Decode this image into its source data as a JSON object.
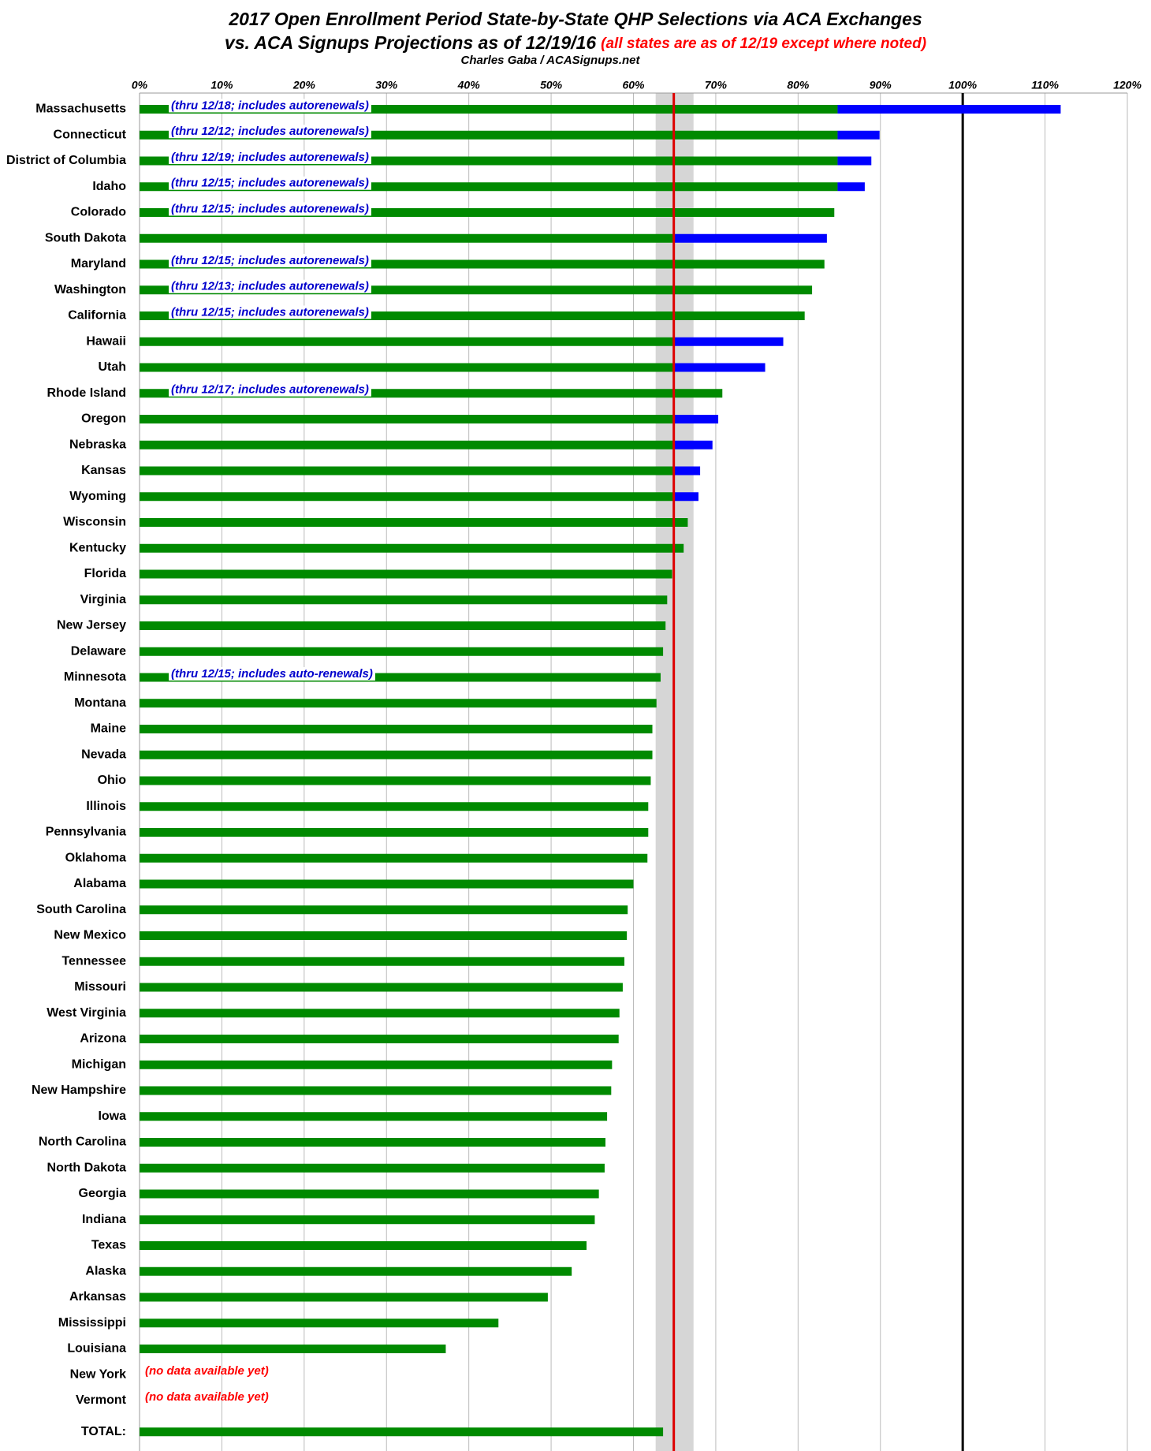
{
  "chart_data": {
    "type": "bar",
    "title": "2017 Open Enrollment Period State-by-State QHP Selections via ACA Exchanges",
    "title_line2": "vs. ACA Signups Projections as of 12/19/16",
    "title_note": "(all states are as of 12/19 except where noted)",
    "subtitle": "Charles Gaba / ACASignups.net",
    "orientation": "horizontal",
    "categories": [
      "Massachusetts",
      "Connecticut",
      "District of Columbia",
      "Idaho",
      "Colorado",
      "South Dakota",
      "Maryland",
      "Washington",
      "California",
      "Hawaii",
      "Utah",
      "Rhode Island",
      "Oregon",
      "Nebraska",
      "Kansas",
      "Wyoming",
      "Wisconsin",
      "Kentucky",
      "Florida",
      "Virginia",
      "New Jersey",
      "Delaware",
      "Minnesota",
      "Montana",
      "Maine",
      "Nevada",
      "Ohio",
      "Illinois",
      "Pennsylvania",
      "Oklahoma",
      "Alabama",
      "South Carolina",
      "New Mexico",
      "Tennessee",
      "Missouri",
      "West Virginia",
      "Arizona",
      "Michigan",
      "New Hampshire",
      "Iowa",
      "North Carolina",
      "North Dakota",
      "Georgia",
      "Indiana",
      "Texas",
      "Alaska",
      "Arkansas",
      "Mississippi",
      "Louisiana",
      "New York",
      "Vermont",
      "TOTAL:"
    ],
    "series": [
      {
        "color": "#008a00",
        "values": [
          84.8,
          84.8,
          84.8,
          84.8,
          84.4,
          64.9,
          83.2,
          81.7,
          80.8,
          64.9,
          64.9,
          70.8,
          64.9,
          64.9,
          64.9,
          64.9,
          66.6,
          66.1,
          64.7,
          64.1,
          63.9,
          63.6,
          63.3,
          62.8,
          62.3,
          62.3,
          62.1,
          61.8,
          61.8,
          61.7,
          60.0,
          59.3,
          59.2,
          58.9,
          58.7,
          58.3,
          58.2,
          57.4,
          57.3,
          56.8,
          56.6,
          56.5,
          55.8,
          55.3,
          54.3,
          52.5,
          49.6,
          43.6,
          37.2,
          null,
          null,
          63.6
        ]
      },
      {
        "color": "#0000ff",
        "values": [
          27.1,
          5.1,
          4.1,
          3.3,
          null,
          18.6,
          null,
          null,
          null,
          13.3,
          11.1,
          null,
          5.4,
          4.7,
          3.2,
          3.0,
          null,
          null,
          null,
          null,
          null,
          null,
          null,
          null,
          null,
          null,
          null,
          null,
          null,
          null,
          null,
          null,
          null,
          null,
          null,
          null,
          null,
          null,
          null,
          null,
          null,
          null,
          null,
          null,
          null,
          null,
          null,
          null,
          null,
          null,
          null,
          null
        ]
      }
    ],
    "notes": [
      "(thru 12/18; includes autorenewals)",
      "(thru 12/12; includes autorenewals)",
      "(thru 12/19; includes autorenewals)",
      "(thru 12/15; includes autorenewals)",
      "(thru 12/15; includes autorenewals)",
      null,
      "(thru 12/15; includes autorenewals)",
      "(thru 12/13; includes autorenewals)",
      "(thru 12/15; includes autorenewals)",
      null,
      null,
      "(thru 12/17; includes autorenewals)",
      null,
      null,
      null,
      null,
      null,
      null,
      null,
      null,
      null,
      null,
      "(thru 12/15; includes auto-renewals)",
      null,
      null,
      null,
      null,
      null,
      null,
      null,
      null,
      null,
      null,
      null,
      null,
      null,
      null,
      null,
      null,
      null,
      null,
      null,
      null,
      null,
      null,
      null,
      null,
      null,
      null,
      "(no data available yet)",
      "(no data available yet)",
      null
    ],
    "note_color": "#0000cc",
    "missing_note_color": "#ff0000",
    "xlim": [
      0,
      120
    ],
    "xticks": [
      {
        "value": 0,
        "label": "0%"
      },
      {
        "value": 10,
        "label": "10%"
      },
      {
        "value": 20,
        "label": "20%"
      },
      {
        "value": 30,
        "label": "30%"
      },
      {
        "value": 40,
        "label": "40%"
      },
      {
        "value": 50,
        "label": "50%"
      },
      {
        "value": 60,
        "label": "60%"
      },
      {
        "value": 70,
        "label": "70%"
      },
      {
        "value": 80,
        "label": "80%"
      },
      {
        "value": 90,
        "label": "90%"
      },
      {
        "value": 100,
        "label": "100%"
      },
      {
        "value": 110,
        "label": "110%"
      },
      {
        "value": 120,
        "label": "120%"
      }
    ],
    "grid": true,
    "target_line": {
      "value": 64.9,
      "color": "#dd0000"
    },
    "target_band": {
      "range": [
        62.7,
        67.3
      ],
      "color": "#d6d6d6"
    },
    "reference_line": {
      "value": 100,
      "color": "#000000"
    }
  }
}
